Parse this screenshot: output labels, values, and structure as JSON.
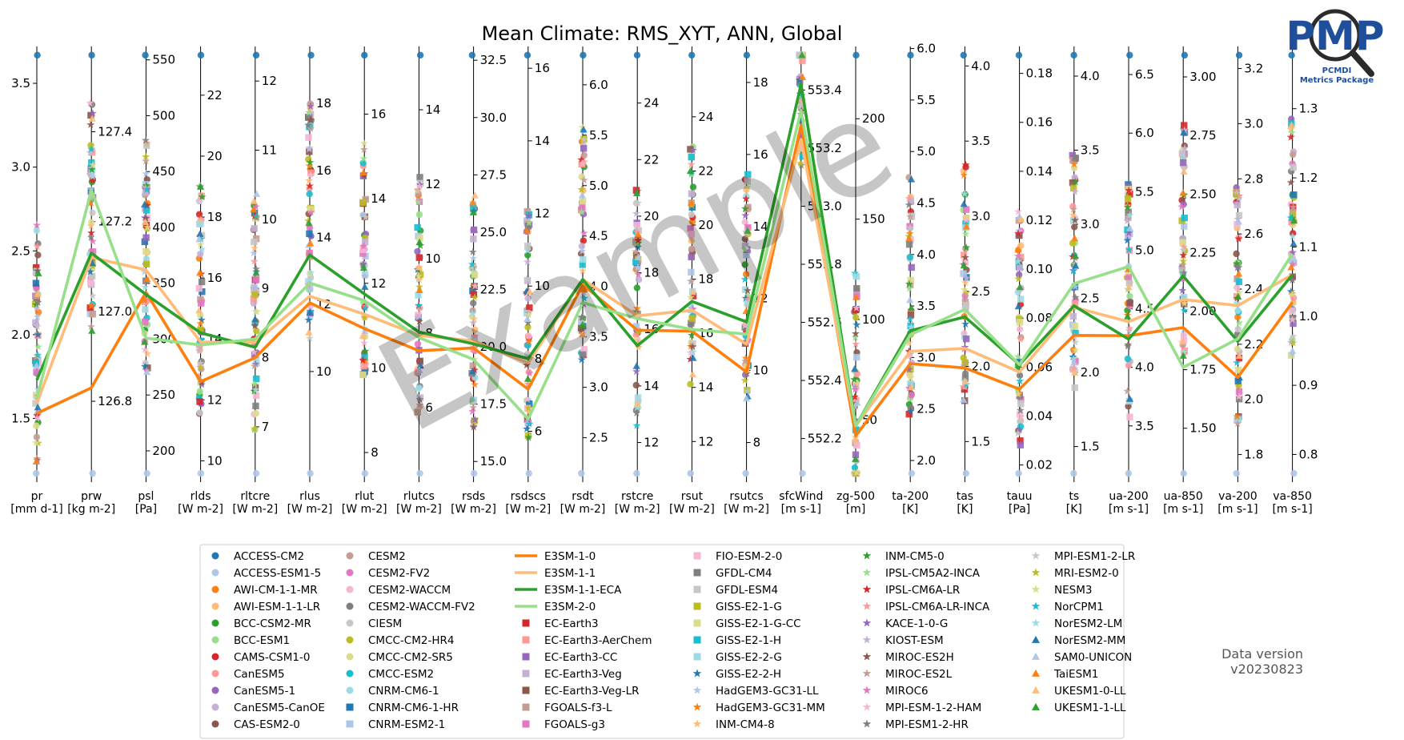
{
  "chart_data": {
    "type": "parallel-coordinates",
    "title": "Mean Climate: RMS_XYT, ANN, Global",
    "watermark": "Example",
    "data_version": "Data version\nv20230823",
    "logo": {
      "initials": "PMP",
      "subtitle_1": "PCMDI",
      "subtitle_2": "Metrics Package",
      "color": "#1f4e9a"
    },
    "axes": [
      {
        "name": "pr",
        "unit": "[mm d-1]",
        "min": 1.12,
        "max": 3.72,
        "ticks": [
          1.5,
          2.0,
          2.5,
          3.0,
          3.5
        ],
        "tick_labels": [
          "1.5",
          "2.0",
          "2.5",
          "3.0",
          "3.5"
        ],
        "left": true
      },
      {
        "name": "prw",
        "unit": "[kg m-2]",
        "min": 126.62,
        "max": 127.59,
        "ticks": [
          126.8,
          127.0,
          127.2,
          127.4
        ],
        "tick_labels": [
          "126.8",
          "127.0",
          "127.2",
          "127.4"
        ]
      },
      {
        "name": "psl",
        "unit": "[Pa]",
        "min": 172,
        "max": 562,
        "ticks": [
          200,
          250,
          300,
          350,
          400,
          450,
          500,
          550
        ],
        "tick_labels": [
          "200",
          "250",
          "300",
          "350",
          "400",
          "450",
          "500",
          "550"
        ]
      },
      {
        "name": "rlds",
        "unit": "[W m-2]",
        "min": 9.3,
        "max": 23.6,
        "ticks": [
          10,
          12,
          14,
          16,
          18,
          20,
          22
        ],
        "tick_labels": [
          "10",
          "12",
          "14",
          "16",
          "18",
          "20",
          "22"
        ]
      },
      {
        "name": "rltcre",
        "unit": "[W m-2]",
        "min": 6.2,
        "max": 12.5,
        "ticks": [
          7,
          8,
          9,
          10,
          11,
          12
        ],
        "tick_labels": [
          "7",
          "8",
          "9",
          "10",
          "11",
          "12"
        ]
      },
      {
        "name": "rlus",
        "unit": "[W m-2]",
        "min": 6.7,
        "max": 19.7,
        "ticks": [
          10,
          12,
          14,
          16,
          18
        ],
        "tick_labels": [
          "10",
          "12",
          "14",
          "16",
          "18"
        ]
      },
      {
        "name": "rlut",
        "unit": "[W m-2]",
        "min": 7.3,
        "max": 17.6,
        "ticks": [
          8,
          10,
          12,
          14,
          16
        ],
        "tick_labels": [
          "8",
          "10",
          "12",
          "14",
          "16"
        ]
      },
      {
        "name": "rlutcs",
        "unit": "[W m-2]",
        "min": 4.0,
        "max": 15.7,
        "ticks": [
          6,
          8,
          10,
          12,
          14
        ],
        "tick_labels": [
          "6",
          "8",
          "10",
          "12",
          "14"
        ]
      },
      {
        "name": "rsds",
        "unit": "[W m-2]",
        "min": 14.1,
        "max": 33.1,
        "ticks": [
          15.0,
          17.5,
          20.0,
          22.5,
          25.0,
          27.5,
          30.0,
          32.5
        ],
        "tick_labels": [
          "15.0",
          "17.5",
          "20.0",
          "22.5",
          "25.0",
          "27.5",
          "30.0",
          "32.5"
        ]
      },
      {
        "name": "rsdscs",
        "unit": "[W m-2]",
        "min": 4.6,
        "max": 16.6,
        "ticks": [
          6,
          8,
          10,
          12,
          14,
          16
        ],
        "tick_labels": [
          "6",
          "8",
          "10",
          "12",
          "14",
          "16"
        ]
      },
      {
        "name": "rsdt",
        "unit": "[W m-2]",
        "min": 2.06,
        "max": 6.38,
        "ticks": [
          2.5,
          3.0,
          3.5,
          4.0,
          4.5,
          5.0,
          5.5,
          6.0
        ],
        "tick_labels": [
          "2.5",
          "3.0",
          "3.5",
          "4.0",
          "4.5",
          "5.0",
          "5.5",
          "6.0"
        ]
      },
      {
        "name": "rstcre",
        "unit": "[W m-2]",
        "min": 10.6,
        "max": 26.0,
        "ticks": [
          12,
          14,
          16,
          18,
          20,
          22,
          24
        ],
        "tick_labels": [
          "12",
          "14",
          "16",
          "18",
          "20",
          "22",
          "24"
        ]
      },
      {
        "name": "rsut",
        "unit": "[W m-2]",
        "min": 10.5,
        "max": 26.6,
        "ticks": [
          12,
          14,
          16,
          18,
          20,
          22,
          24
        ],
        "tick_labels": [
          "12",
          "14",
          "16",
          "18",
          "20",
          "22",
          "24"
        ]
      },
      {
        "name": "rsutcs",
        "unit": "[W m-2]",
        "min": 6.9,
        "max": 19.0,
        "ticks": [
          8,
          10,
          12,
          14,
          16,
          18
        ],
        "tick_labels": [
          "8",
          "10",
          "12",
          "14",
          "16",
          "18"
        ]
      },
      {
        "name": "sfcWind",
        "unit": "[m s-1]",
        "min": 552.05,
        "max": 553.55,
        "ticks": [
          552.2,
          552.4,
          552.6,
          552.8,
          553.0,
          553.2,
          553.4
        ],
        "tick_labels": [
          "552.2",
          "552.4",
          "552.6",
          "552.8",
          "553.0",
          "553.2",
          "553.4"
        ]
      },
      {
        "name": "zg-500",
        "unit": "[m]",
        "min": 19,
        "max": 236,
        "ticks": [
          50,
          100,
          150,
          200
        ],
        "tick_labels": [
          "50",
          "100",
          "150",
          "200"
        ]
      },
      {
        "name": "ta-200",
        "unit": "[K]",
        "min": 1.79,
        "max": 6.02,
        "ticks": [
          2.0,
          2.5,
          3.0,
          3.5,
          4.0,
          4.5,
          5.0,
          5.5,
          6.0
        ],
        "tick_labels": [
          "2.0",
          "2.5",
          "3.0",
          "3.5",
          "4.0",
          "4.5",
          "5.0",
          "5.5",
          "6.0"
        ]
      },
      {
        "name": "tas",
        "unit": "[K]",
        "min": 1.23,
        "max": 4.13,
        "ticks": [
          1.5,
          2.0,
          2.5,
          3.0,
          3.5,
          4.0
        ],
        "tick_labels": [
          "1.5",
          "2.0",
          "2.5",
          "3.0",
          "3.5",
          "4.0"
        ]
      },
      {
        "name": "tauu",
        "unit": "[Pa]",
        "min": 0.013,
        "max": 0.191,
        "ticks": [
          0.02,
          0.04,
          0.06,
          0.08,
          0.1,
          0.12,
          0.14,
          0.16,
          0.18
        ],
        "tick_labels": [
          "0.02",
          "0.04",
          "0.06",
          "0.08",
          "0.10",
          "0.12",
          "0.14",
          "0.16",
          "0.18"
        ]
      },
      {
        "name": "ts",
        "unit": "[K]",
        "min": 1.26,
        "max": 4.2,
        "ticks": [
          1.5,
          2.0,
          2.5,
          3.0,
          3.5,
          4.0
        ],
        "tick_labels": [
          "1.5",
          "2.0",
          "2.5",
          "3.0",
          "3.5",
          "4.0"
        ]
      },
      {
        "name": "ua-200",
        "unit": "[m s-1]",
        "min": 3.02,
        "max": 6.74,
        "ticks": [
          3.5,
          4.0,
          4.5,
          5.0,
          5.5,
          6.0,
          6.5
        ],
        "tick_labels": [
          "3.5",
          "4.0",
          "4.5",
          "5.0",
          "5.5",
          "6.0",
          "6.5"
        ]
      },
      {
        "name": "ua-850",
        "unit": "[m s-1]",
        "min": 1.27,
        "max": 3.13,
        "ticks": [
          1.5,
          1.75,
          2.0,
          2.25,
          2.5,
          2.75,
          3.0
        ],
        "tick_labels": [
          "1.50",
          "1.75",
          "2.00",
          "2.25",
          "2.50",
          "2.75",
          "3.00"
        ]
      },
      {
        "name": "va-200",
        "unit": "[m s-1]",
        "min": 1.7,
        "max": 3.28,
        "ticks": [
          1.8,
          2.0,
          2.2,
          2.4,
          2.6,
          2.8,
          3.0,
          3.2
        ],
        "tick_labels": [
          "1.8",
          "2.0",
          "2.2",
          "2.4",
          "2.6",
          "2.8",
          "3.0",
          "3.2"
        ]
      },
      {
        "name": "va-850",
        "unit": "[m s-1]",
        "min": 0.76,
        "max": 1.39,
        "ticks": [
          0.8,
          0.9,
          1.0,
          1.1,
          1.2,
          1.3
        ],
        "tick_labels": [
          "0.8",
          "0.9",
          "1.0",
          "1.1",
          "1.2",
          "1.3"
        ]
      }
    ],
    "highlighted_lines": [
      {
        "name": "E3SM-1-0",
        "color": "#ff7f0e",
        "values": [
          1.53,
          126.83,
          342,
          12.6,
          8.0,
          12.05,
          10.93,
          7.53,
          19.95,
          7.16,
          4.02,
          15.97,
          16.08,
          9.96,
          553.28,
          42,
          2.94,
          1.99,
          0.051,
          2.25,
          4.27,
          1.93,
          2.08,
          1.02
        ]
      },
      {
        "name": "E3SM-1-1",
        "color": "#ffbb78",
        "values": [
          1.59,
          127.12,
          362,
          13.9,
          8.22,
          12.25,
          11.27,
          7.94,
          20.26,
          7.88,
          4.07,
          16.48,
          16.85,
          10.73,
          553.23,
          47,
          3.06,
          2.12,
          0.058,
          2.44,
          4.39,
          2.05,
          2.34,
          1.06
        ]
      },
      {
        "name": "E3SM-1-1-ECA",
        "color": "#2ca02c",
        "values": [
          1.73,
          127.13,
          340,
          14.2,
          8.15,
          13.48,
          11.75,
          8.03,
          20.13,
          8.0,
          4.07,
          15.42,
          17.18,
          11.35,
          553.42,
          47,
          3.26,
          2.33,
          0.061,
          2.45,
          4.24,
          2.15,
          2.21,
          1.06
        ]
      },
      {
        "name": "E3SM-2-0",
        "color": "#98df8a",
        "values": [
          1.62,
          127.27,
          301,
          13.8,
          8.27,
          12.64,
          11.59,
          7.88,
          19.45,
          6.34,
          3.84,
          16.38,
          16.14,
          11.01,
          553.33,
          47,
          3.22,
          2.38,
          0.061,
          2.6,
          4.86,
          1.76,
          2.22,
          1.09
        ]
      }
    ],
    "legend": [
      {
        "name": "ACCESS-CM2",
        "color": "#1f77b4",
        "marker": "circle"
      },
      {
        "name": "ACCESS-ESM1-5",
        "color": "#aec7e8",
        "marker": "circle"
      },
      {
        "name": "AWI-CM-1-1-MR",
        "color": "#ff7f0e",
        "marker": "circle"
      },
      {
        "name": "AWI-ESM-1-1-LR",
        "color": "#ffbb78",
        "marker": "circle"
      },
      {
        "name": "BCC-CSM2-MR",
        "color": "#2ca02c",
        "marker": "circle"
      },
      {
        "name": "BCC-ESM1",
        "color": "#98df8a",
        "marker": "circle"
      },
      {
        "name": "CAMS-CSM1-0",
        "color": "#d62728",
        "marker": "circle"
      },
      {
        "name": "CanESM5",
        "color": "#ff9896",
        "marker": "circle"
      },
      {
        "name": "CanESM5-1",
        "color": "#9467bd",
        "marker": "circle"
      },
      {
        "name": "CanESM5-CanOE",
        "color": "#c5b0d5",
        "marker": "circle"
      },
      {
        "name": "CAS-ESM2-0",
        "color": "#8c564b",
        "marker": "circle"
      },
      {
        "name": "CESM2",
        "color": "#c49c94",
        "marker": "circle"
      },
      {
        "name": "CESM2-FV2",
        "color": "#e377c2",
        "marker": "circle"
      },
      {
        "name": "CESM2-WACCM",
        "color": "#f7b6d2",
        "marker": "circle"
      },
      {
        "name": "CESM2-WACCM-FV2",
        "color": "#7f7f7f",
        "marker": "circle"
      },
      {
        "name": "CIESM",
        "color": "#c7c7c7",
        "marker": "circle"
      },
      {
        "name": "CMCC-CM2-HR4",
        "color": "#bcbd22",
        "marker": "circle"
      },
      {
        "name": "CMCC-CM2-SR5",
        "color": "#dbdb8d",
        "marker": "circle"
      },
      {
        "name": "CMCC-ESM2",
        "color": "#17becf",
        "marker": "circle"
      },
      {
        "name": "CNRM-CM6-1",
        "color": "#9edae5",
        "marker": "circle"
      },
      {
        "name": "CNRM-CM6-1-HR",
        "color": "#1f77b4",
        "marker": "square"
      },
      {
        "name": "CNRM-ESM2-1",
        "color": "#aec7e8",
        "marker": "square"
      },
      {
        "name": "E3SM-1-0",
        "color": "#ff7f0e",
        "marker": "line"
      },
      {
        "name": "E3SM-1-1",
        "color": "#ffbb78",
        "marker": "line"
      },
      {
        "name": "E3SM-1-1-ECA",
        "color": "#2ca02c",
        "marker": "line"
      },
      {
        "name": "E3SM-2-0",
        "color": "#98df8a",
        "marker": "line"
      },
      {
        "name": "EC-Earth3",
        "color": "#d62728",
        "marker": "square"
      },
      {
        "name": "EC-Earth3-AerChem",
        "color": "#ff9896",
        "marker": "square"
      },
      {
        "name": "EC-Earth3-CC",
        "color": "#9467bd",
        "marker": "square"
      },
      {
        "name": "EC-Earth3-Veg",
        "color": "#c5b0d5",
        "marker": "square"
      },
      {
        "name": "EC-Earth3-Veg-LR",
        "color": "#8c564b",
        "marker": "square"
      },
      {
        "name": "FGOALS-f3-L",
        "color": "#c49c94",
        "marker": "square"
      },
      {
        "name": "FGOALS-g3",
        "color": "#e377c2",
        "marker": "square"
      },
      {
        "name": "FIO-ESM-2-0",
        "color": "#f7b6d2",
        "marker": "square"
      },
      {
        "name": "GFDL-CM4",
        "color": "#7f7f7f",
        "marker": "square"
      },
      {
        "name": "GFDL-ESM4",
        "color": "#c7c7c7",
        "marker": "square"
      },
      {
        "name": "GISS-E2-1-G",
        "color": "#bcbd22",
        "marker": "square"
      },
      {
        "name": "GISS-E2-1-G-CC",
        "color": "#dbdb8d",
        "marker": "square"
      },
      {
        "name": "GISS-E2-1-H",
        "color": "#17becf",
        "marker": "square"
      },
      {
        "name": "GISS-E2-2-G",
        "color": "#9edae5",
        "marker": "square"
      },
      {
        "name": "GISS-E2-2-H",
        "color": "#1f77b4",
        "marker": "star"
      },
      {
        "name": "HadGEM3-GC31-LL",
        "color": "#aec7e8",
        "marker": "star"
      },
      {
        "name": "HadGEM3-GC31-MM",
        "color": "#ff7f0e",
        "marker": "star"
      },
      {
        "name": "INM-CM4-8",
        "color": "#ffbb78",
        "marker": "star"
      },
      {
        "name": "INM-CM5-0",
        "color": "#2ca02c",
        "marker": "star"
      },
      {
        "name": "IPSL-CM5A2-INCA",
        "color": "#98df8a",
        "marker": "star"
      },
      {
        "name": "IPSL-CM6A-LR",
        "color": "#d62728",
        "marker": "star"
      },
      {
        "name": "IPSL-CM6A-LR-INCA",
        "color": "#ff9896",
        "marker": "star"
      },
      {
        "name": "KACE-1-0-G",
        "color": "#9467bd",
        "marker": "star"
      },
      {
        "name": "KIOST-ESM",
        "color": "#c5b0d5",
        "marker": "star"
      },
      {
        "name": "MIROC-ES2H",
        "color": "#8c564b",
        "marker": "star"
      },
      {
        "name": "MIROC-ES2L",
        "color": "#c49c94",
        "marker": "star"
      },
      {
        "name": "MIROC6",
        "color": "#e377c2",
        "marker": "star"
      },
      {
        "name": "MPI-ESM-1-2-HAM",
        "color": "#f7b6d2",
        "marker": "star"
      },
      {
        "name": "MPI-ESM1-2-HR",
        "color": "#7f7f7f",
        "marker": "star"
      },
      {
        "name": "MPI-ESM1-2-LR",
        "color": "#c7c7c7",
        "marker": "star"
      },
      {
        "name": "MRI-ESM2-0",
        "color": "#bcbd22",
        "marker": "star"
      },
      {
        "name": "NESM3",
        "color": "#dbdb8d",
        "marker": "star"
      },
      {
        "name": "NorCPM1",
        "color": "#17becf",
        "marker": "star"
      },
      {
        "name": "NorESM2-LM",
        "color": "#9edae5",
        "marker": "star"
      },
      {
        "name": "NorESM2-MM",
        "color": "#1f77b4",
        "marker": "triangle"
      },
      {
        "name": "SAM0-UNICON",
        "color": "#aec7e8",
        "marker": "triangle"
      },
      {
        "name": "TaiESM1",
        "color": "#ff7f0e",
        "marker": "triangle"
      },
      {
        "name": "UKESM1-0-LL",
        "color": "#ffbb78",
        "marker": "triangle"
      },
      {
        "name": "UKESM1-1-LL",
        "color": "#2ca02c",
        "marker": "triangle"
      }
    ],
    "legend_columns": 6,
    "legend_placement": "bottom-center",
    "grid": false
  }
}
